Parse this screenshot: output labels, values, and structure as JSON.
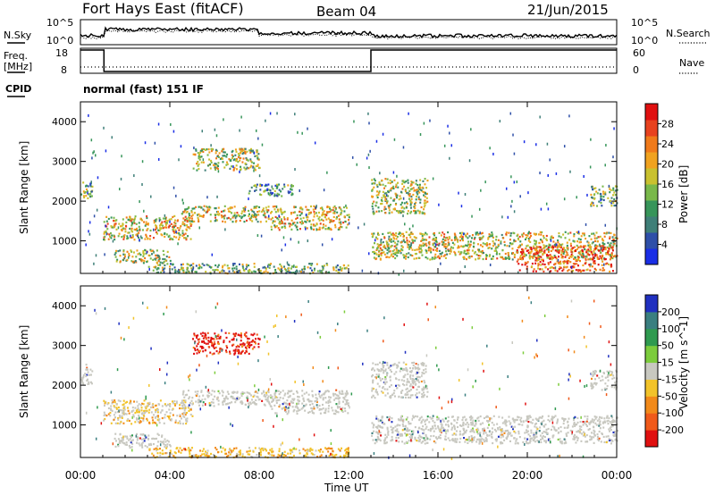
{
  "header": {
    "station": "Fort Hays East (fitACF)",
    "beam": "Beam 04",
    "date": "21/Jun/2015"
  },
  "noise_panel": {
    "left_label": "N.Sky",
    "right_label": "N.Search",
    "left_ticks": [
      "10^5",
      "10^0"
    ],
    "right_ticks": [
      "10^5",
      "10^0"
    ]
  },
  "freq_panel": {
    "left_label_1": "Freq.",
    "left_label_2": "[MHz]",
    "right_label": "Nave",
    "left_ticks": [
      "18",
      "8"
    ],
    "right_ticks": [
      "60",
      "0"
    ],
    "freq_steps": [
      {
        "start_h": 0,
        "end_h": 1.05,
        "value": 18
      },
      {
        "start_h": 1.05,
        "end_h": 13.0,
        "value": 8
      },
      {
        "start_h": 13.0,
        "end_h": 24,
        "value": 18
      }
    ],
    "nave_level": 15
  },
  "cpid": {
    "label": "CPID",
    "mode": "normal (fast) 151 IF"
  },
  "x_axis": {
    "title": "Time UT",
    "ticks": [
      "00:00",
      "04:00",
      "08:00",
      "12:00",
      "16:00",
      "20:00",
      "00:00"
    ],
    "range_h": [
      0,
      24
    ]
  },
  "chart_data": [
    {
      "type": "heatmap",
      "parameter": "power",
      "ylabel": "Slant Range [km]",
      "ylim": [
        180,
        4500
      ],
      "yticks": [
        "1000",
        "2000",
        "3000",
        "4000"
      ],
      "colorbar": {
        "label": "Power [dB]",
        "ticks": [
          "4",
          "8",
          "12",
          "16",
          "20",
          "24",
          "28"
        ],
        "colors": [
          "#1a2ee6",
          "#2e4fa8",
          "#3f7f78",
          "#37955a",
          "#79b84a",
          "#c9c12f",
          "#f0a21f",
          "#f07a1a",
          "#e8421f",
          "#e01010"
        ]
      },
      "echo_regions": [
        {
          "t0": 0.0,
          "t1": 0.5,
          "r0": 2050,
          "r1": 2550,
          "level": 0.45
        },
        {
          "t0": 1.0,
          "t1": 5.0,
          "r0": 1050,
          "r1": 1650,
          "level": 0.6
        },
        {
          "t0": 4.5,
          "t1": 8.5,
          "r0": 1500,
          "r1": 1900,
          "level": 0.55
        },
        {
          "t0": 8.5,
          "t1": 12.0,
          "r0": 1300,
          "r1": 1900,
          "level": 0.6
        },
        {
          "t0": 5.0,
          "t1": 8.0,
          "r0": 2800,
          "r1": 3350,
          "level": 0.5
        },
        {
          "t0": 7.5,
          "t1": 9.5,
          "r0": 2150,
          "r1": 2450,
          "level": 0.35
        },
        {
          "t0": 1.5,
          "t1": 4.0,
          "r0": 450,
          "r1": 800,
          "level": 0.5
        },
        {
          "t0": 3.0,
          "t1": 12.0,
          "r0": 200,
          "r1": 450,
          "level": 0.4
        },
        {
          "t0": 13.0,
          "t1": 15.5,
          "r0": 1700,
          "r1": 2600,
          "level": 0.5
        },
        {
          "t0": 13.0,
          "t1": 24.0,
          "r0": 550,
          "r1": 1250,
          "level": 0.55
        },
        {
          "t0": 19.5,
          "t1": 23.8,
          "r0": 250,
          "r1": 900,
          "level": 0.8
        },
        {
          "t0": 22.8,
          "t1": 24.0,
          "r0": 1900,
          "r1": 2400,
          "level": 0.4
        }
      ]
    },
    {
      "type": "heatmap",
      "parameter": "velocity",
      "ylabel": "Slant Range [km]",
      "ylim": [
        180,
        4500
      ],
      "yticks": [
        "1000",
        "2000",
        "3000",
        "4000"
      ],
      "colorbar": {
        "label": "Velocity [m s^-1]",
        "ticks": [
          "200",
          "100",
          "50",
          "15",
          "-15",
          "-50",
          "-100",
          "-200"
        ],
        "colors": [
          "#2030c0",
          "#3a7f80",
          "#2f9a4f",
          "#7ccc3c",
          "#c8c8c0",
          "#f2c32a",
          "#f28a1a",
          "#f05a1a",
          "#e01010"
        ]
      },
      "echo_regions": [
        {
          "t0": 0.0,
          "t1": 0.5,
          "r0": 2050,
          "r1": 2550,
          "color": "ground"
        },
        {
          "t0": 1.0,
          "t1": 5.0,
          "r0": 1050,
          "r1": 1650,
          "color": "mixed"
        },
        {
          "t0": 4.5,
          "t1": 8.5,
          "r0": 1500,
          "r1": 1900,
          "color": "ground"
        },
        {
          "t0": 8.5,
          "t1": 12.0,
          "r0": 1300,
          "r1": 1900,
          "color": "ground"
        },
        {
          "t0": 5.0,
          "t1": 8.0,
          "r0": 2800,
          "r1": 3350,
          "color": "red"
        },
        {
          "t0": 1.5,
          "t1": 4.0,
          "r0": 450,
          "r1": 800,
          "color": "ground"
        },
        {
          "t0": 3.0,
          "t1": 12.0,
          "r0": 200,
          "r1": 450,
          "color": "orange"
        },
        {
          "t0": 13.0,
          "t1": 15.5,
          "r0": 1700,
          "r1": 2600,
          "color": "ground"
        },
        {
          "t0": 13.0,
          "t1": 24.0,
          "r0": 550,
          "r1": 1250,
          "color": "ground"
        },
        {
          "t0": 22.8,
          "t1": 24.0,
          "r0": 1900,
          "r1": 2400,
          "color": "ground"
        }
      ]
    }
  ]
}
